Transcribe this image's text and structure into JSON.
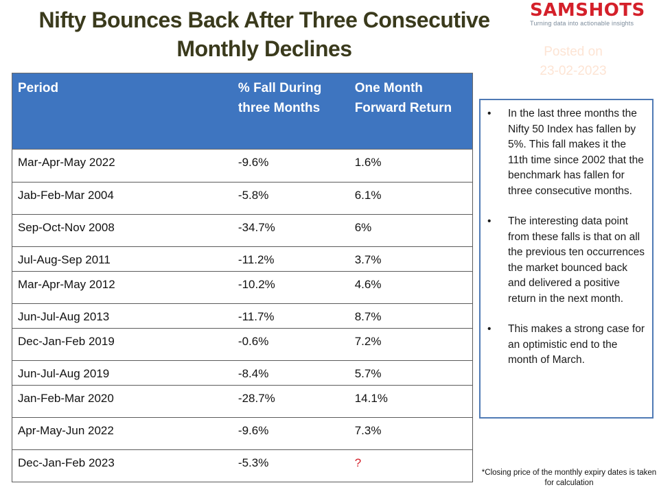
{
  "title": "Nifty Bounces Back After Three Consecutive Monthly Declines",
  "logo": {
    "text": "SAMSHOTS",
    "tagline": "Turning data into actionable insights"
  },
  "posted": {
    "label": "Posted on",
    "date": "23-02-2023"
  },
  "chart_data": {
    "type": "table",
    "columns": [
      "Period",
      "% Fall During three Months",
      "One Month Forward Return"
    ],
    "rows": [
      [
        "Mar-Apr-May 2022",
        "-9.6%",
        "1.6%"
      ],
      [
        "Jab-Feb-Mar 2004",
        "-5.8%",
        "6.1%"
      ],
      [
        "Sep-Oct-Nov 2008",
        "-34.7%",
        "6%"
      ],
      [
        "Jul-Aug-Sep 2011",
        "-11.2%",
        "3.7%"
      ],
      [
        "Mar-Apr-May 2012",
        "-10.2%",
        "4.6%"
      ],
      [
        "Jun-Jul-Aug 2013",
        "-11.7%",
        "8.7%"
      ],
      [
        "Dec-Jan-Feb 2019",
        "-0.6%",
        "7.2%"
      ],
      [
        "Jun-Jul-Aug 2019",
        "-8.4%",
        "5.7%"
      ],
      [
        "Jan-Feb-Mar 2020",
        "-28.7%",
        "14.1%"
      ],
      [
        "Apr-May-Jun 2022",
        "-9.6%",
        "7.3%"
      ],
      [
        "Dec-Jan-Feb 2023",
        "-5.3%",
        "?"
      ]
    ],
    "header_color": "#3e75c0",
    "highlight_color": "#d4202a"
  },
  "notes": [
    "In the last three months the Nifty 50 Index has fallen by 5%. This fall makes it the 11th time since 2002 that the benchmark has fallen for three consecutive months.",
    "The interesting data point from these falls is that on all the previous ten occurrences the market bounced back and delivered a positive return in the next month.",
    "This makes a strong case for an optimistic end to the month of March."
  ],
  "footnote": "*Closing price of the monthly expiry dates is taken for calculation"
}
